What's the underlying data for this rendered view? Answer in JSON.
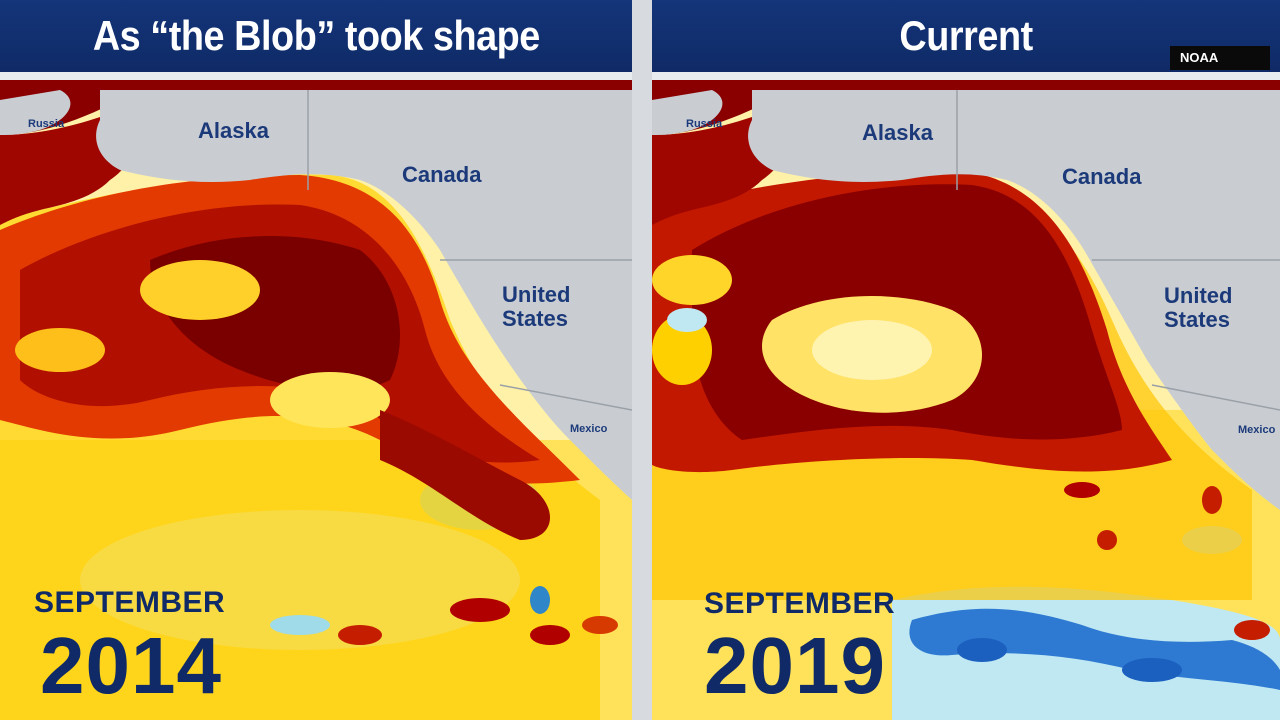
{
  "left_panel": {
    "header": "As “the Blob” took shape",
    "labels": {
      "russia": "Russia",
      "alaska": "Alaska",
      "canada": "Canada",
      "us_line1": "United",
      "us_line2": "States",
      "mexico": "Mexico"
    },
    "month": "SEPTEMBER",
    "year": "2014"
  },
  "right_panel": {
    "header": "Current",
    "labels": {
      "russia": "Russia",
      "alaska": "Alaska",
      "canada": "Canada",
      "us_line1": "United",
      "us_line2": "States",
      "mexico": "Mexico"
    },
    "month": "SEPTEMBER",
    "year": "2019"
  },
  "source_badge": "NOAA",
  "palette": {
    "land": "#c9cdd2",
    "hot_dark": "#7b0000",
    "hot": "#c41d00",
    "warm": "#ff7a00",
    "yellow": "#ffe400",
    "cool": "#bfe8f3",
    "cold": "#1b5fbf"
  }
}
